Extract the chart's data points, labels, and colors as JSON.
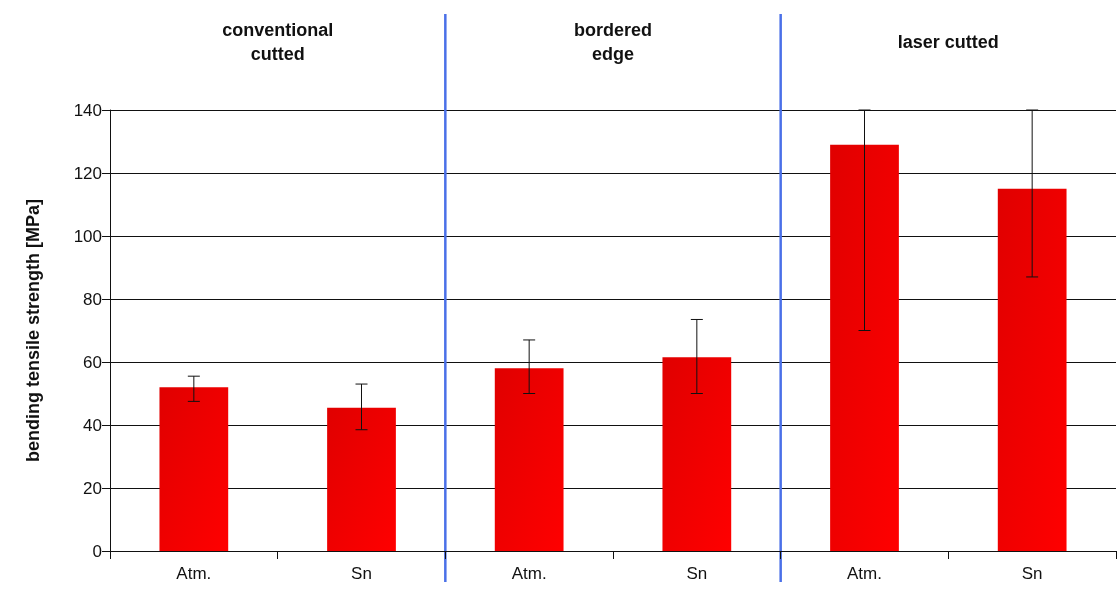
{
  "chart_data": {
    "type": "bar",
    "ylabel": "bending tensile strength [MPa]",
    "categories": [
      "Atm.",
      "Sn",
      "Atm.",
      "Sn",
      "Atm.",
      "Sn"
    ],
    "values": [
      52,
      45.5,
      58,
      61.5,
      129,
      115
    ],
    "errors": [
      [
        47.5,
        55.5
      ],
      [
        38.5,
        53
      ],
      [
        50,
        67
      ],
      [
        50,
        73.5
      ],
      [
        70,
        140
      ],
      [
        87,
        140
      ]
    ],
    "color": "#e00000",
    "ylim": [
      0,
      140
    ],
    "yticks": [
      0,
      20,
      40,
      60,
      80,
      100,
      120,
      140
    ],
    "grid": "y",
    "annotations": [
      "conventional\ncutted",
      "bordered\nedge",
      "laser cutted"
    ]
  }
}
